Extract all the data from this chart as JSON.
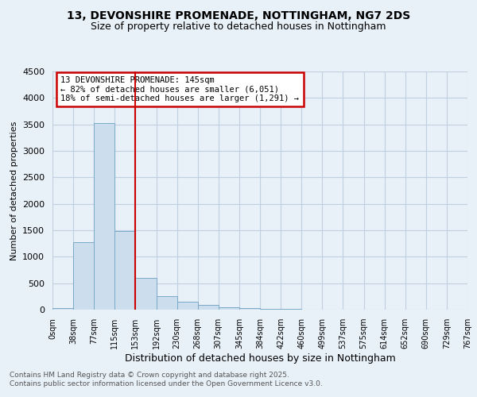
{
  "title_line1": "13, DEVONSHIRE PROMENADE, NOTTINGHAM, NG7 2DS",
  "title_line2": "Size of property relative to detached houses in Nottingham",
  "xlabel": "Distribution of detached houses by size in Nottingham",
  "ylabel": "Number of detached properties",
  "bar_values": [
    30,
    1270,
    3530,
    1490,
    600,
    255,
    145,
    95,
    50,
    30,
    20,
    10,
    5,
    3,
    2,
    1,
    1,
    0,
    0,
    0
  ],
  "bar_labels": [
    "0sqm",
    "38sqm",
    "77sqm",
    "115sqm",
    "153sqm",
    "192sqm",
    "230sqm",
    "268sqm",
    "307sqm",
    "345sqm",
    "384sqm",
    "422sqm",
    "460sqm",
    "499sqm",
    "537sqm",
    "575sqm",
    "614sqm",
    "652sqm",
    "690sqm",
    "729sqm",
    "767sqm"
  ],
  "bar_color": "#ccdded",
  "bar_edge_color": "#7aaac8",
  "grid_color": "#c0d0e0",
  "bg_color": "#e8f0f8",
  "vline_color": "#cc0000",
  "annotation_title": "13 DEVONSHIRE PROMENADE: 145sqm",
  "annotation_line2": "← 82% of detached houses are smaller (6,051)",
  "annotation_line3": "18% of semi-detached houses are larger (1,291) →",
  "annotation_box_color": "#cc0000",
  "ylim": [
    0,
    4500
  ],
  "yticks": [
    0,
    500,
    1000,
    1500,
    2000,
    2500,
    3000,
    3500,
    4000,
    4500
  ],
  "footer_line1": "Contains HM Land Registry data © Crown copyright and database right 2025.",
  "footer_line2": "Contains public sector information licensed under the Open Government Licence v3.0."
}
